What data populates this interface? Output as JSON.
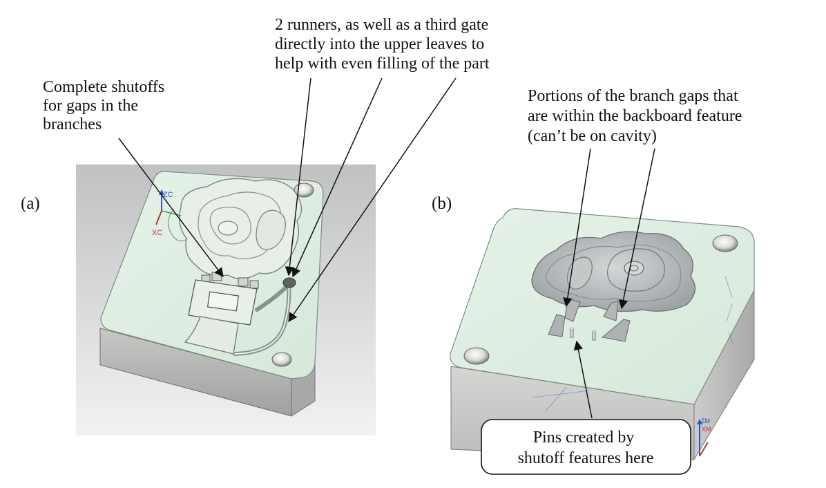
{
  "panel_a": {
    "label": "(a)",
    "annotations": {
      "shutoffs": [
        "Complete shutoffs",
        "for gaps in the",
        "branches"
      ],
      "runners": [
        "2 runners, as well as a third gate",
        "directly into the upper leaves to",
        "help with even filling of the part"
      ]
    },
    "triad_labels": {
      "z": "ZC",
      "x": "XC"
    }
  },
  "panel_b": {
    "label": "(b)",
    "annotations": {
      "branch_gaps": [
        "Portions of the branch gaps that",
        "are within the backboard feature",
        "(can’t be on cavity)"
      ],
      "pins": [
        "Pins created by",
        "shutoff features here"
      ]
    },
    "triad_labels": {
      "z": "ZM",
      "x": "XM"
    }
  },
  "colors": {
    "mold_face": "#dfeee2",
    "mold_side": "#c8c9c7",
    "part_surface": "#e3e9e3",
    "part_b": "#b6babb",
    "viewport_bg": "#cdcfd1",
    "annotation": "#111111",
    "triad_z": "#2b56c9",
    "triad_x": "#c8322a"
  }
}
